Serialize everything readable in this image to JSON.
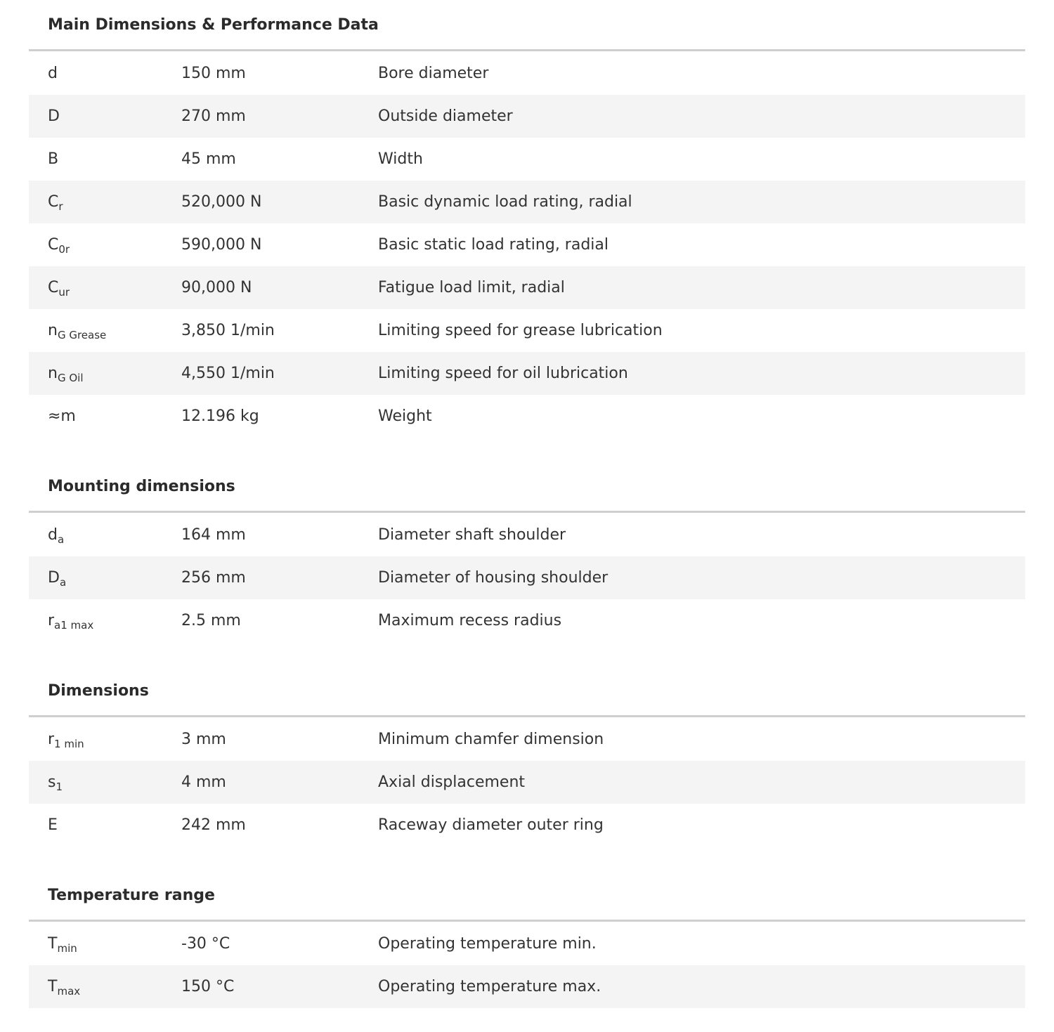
{
  "sections": [
    {
      "title": "Main Dimensions & Performance Data",
      "rows": [
        {
          "sym": "d",
          "sub": "",
          "value": "150 mm",
          "desc": "Bore diameter"
        },
        {
          "sym": "D",
          "sub": "",
          "value": "270 mm",
          "desc": "Outside diameter"
        },
        {
          "sym": "B",
          "sub": "",
          "value": "45 mm",
          "desc": "Width"
        },
        {
          "sym": "C",
          "sub": "r",
          "value": "520,000 N",
          "desc": "Basic dynamic load rating, radial"
        },
        {
          "sym": "C",
          "sub": "0r",
          "value": "590,000 N",
          "desc": "Basic static load rating, radial"
        },
        {
          "sym": "C",
          "sub": "ur",
          "value": "90,000 N",
          "desc": "Fatigue load limit, radial"
        },
        {
          "sym": "n",
          "sub": "G Grease",
          "value": "3,850 1/min",
          "desc": "Limiting speed for grease lubrication"
        },
        {
          "sym": "n",
          "sub": "G Oil",
          "value": "4,550 1/min",
          "desc": "Limiting speed for oil lubrication"
        },
        {
          "sym": "≈m",
          "sub": "",
          "value": "12.196 kg",
          "desc": "Weight"
        }
      ]
    },
    {
      "title": "Mounting dimensions",
      "rows": [
        {
          "sym": "d",
          "sub": "a",
          "value": "164 mm",
          "desc": "Diameter shaft shoulder"
        },
        {
          "sym": "D",
          "sub": "a",
          "value": "256 mm",
          "desc": "Diameter of housing shoulder"
        },
        {
          "sym": "r",
          "sub": "a1 max",
          "value": "2.5 mm",
          "desc": "Maximum recess radius"
        }
      ]
    },
    {
      "title": "Dimensions",
      "rows": [
        {
          "sym": "r",
          "sub": "1 min",
          "value": "3 mm",
          "desc": "Minimum chamfer dimension"
        },
        {
          "sym": "s",
          "sub": "1",
          "value": "4 mm",
          "desc": "Axial displacement"
        },
        {
          "sym": "E",
          "sub": "",
          "value": "242 mm",
          "desc": "Raceway diameter outer ring"
        }
      ]
    },
    {
      "title": "Temperature range",
      "rows": [
        {
          "sym": "T",
          "sub": "min",
          "value": "-30 °C",
          "desc": "Operating temperature min."
        },
        {
          "sym": "T",
          "sub": "max",
          "value": "150 °C",
          "desc": "Operating temperature max."
        }
      ]
    }
  ]
}
